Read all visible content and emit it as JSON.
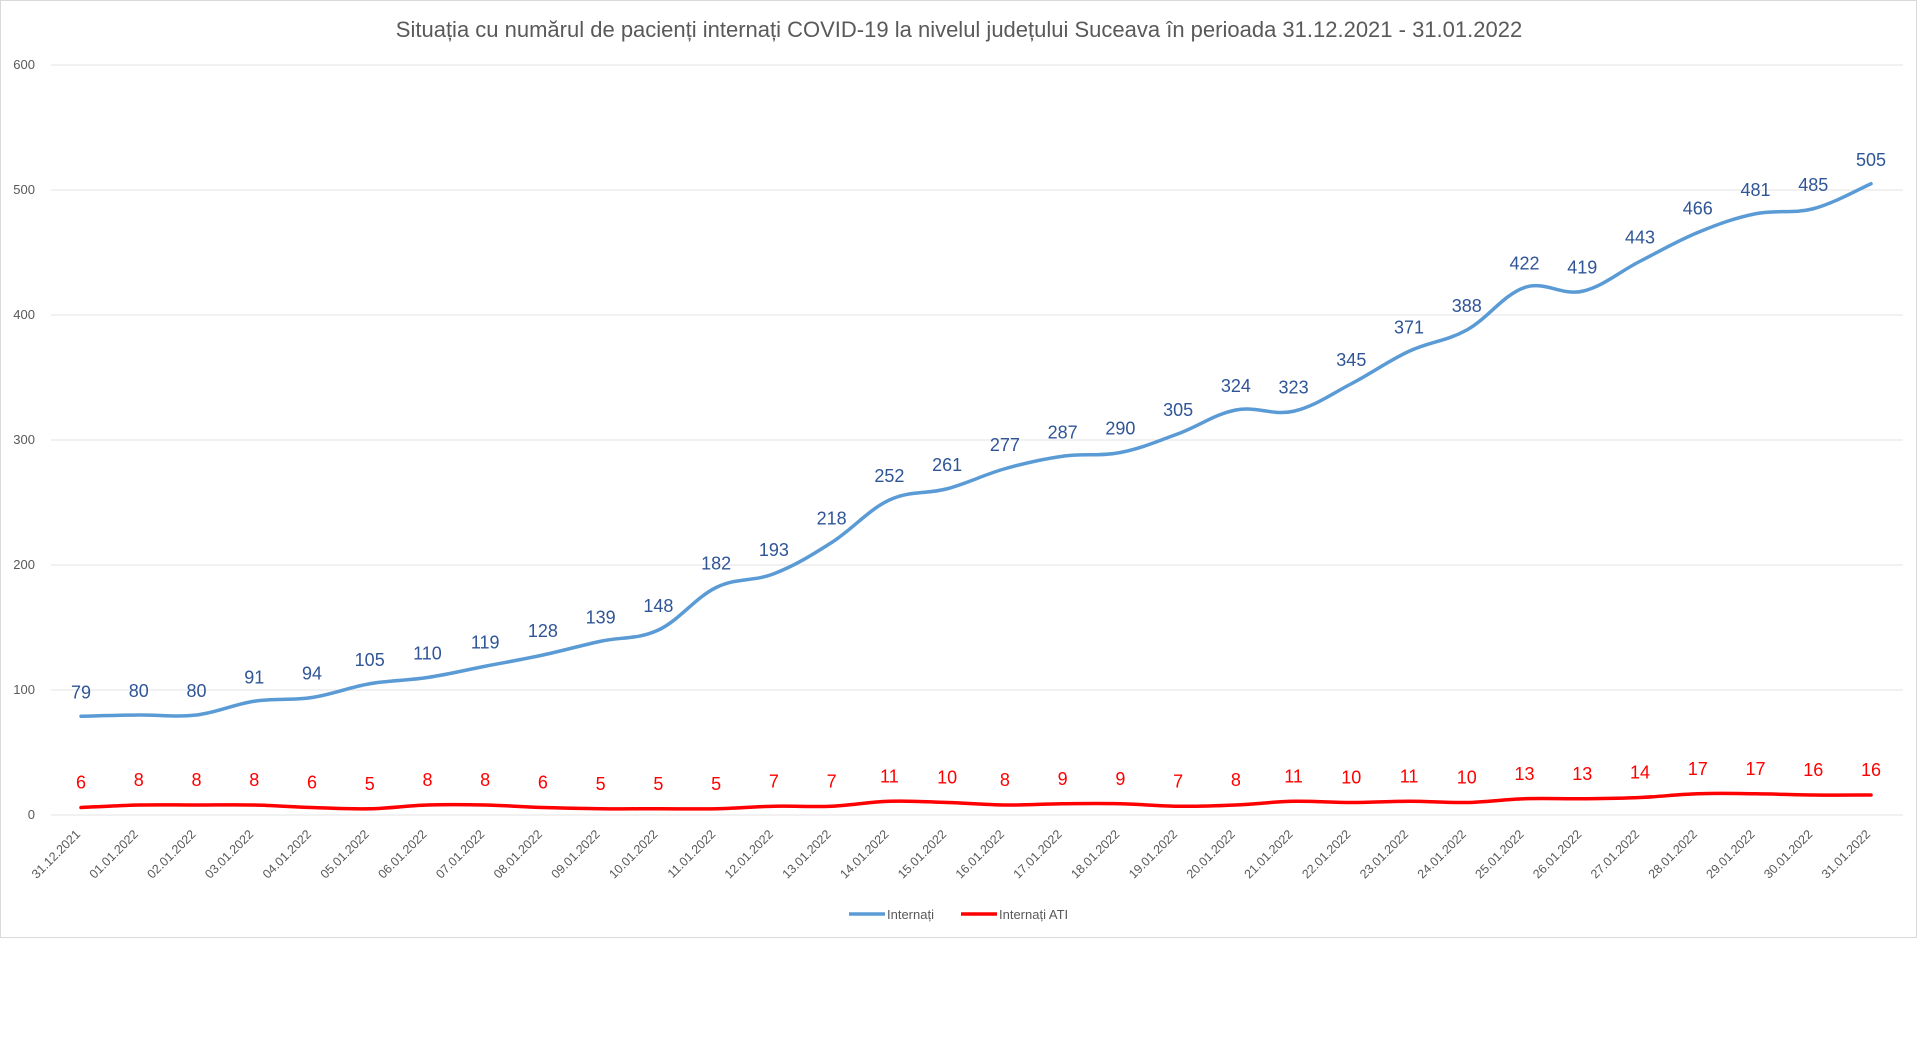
{
  "chart_data": {
    "type": "line",
    "title": "Situația cu numărul de pacienți internați COVID-19 la nivelul județului Suceava în perioada 31.12.2021 - 31.01.2022",
    "xlabel": "",
    "ylabel": "",
    "ylim": [
      0,
      600
    ],
    "yticks": [
      0,
      100,
      200,
      300,
      400,
      500,
      600
    ],
    "grid": true,
    "legend_position": "bottom",
    "categories": [
      "31.12.2021",
      "01.01.2022",
      "02.01.2022",
      "03.01.2022",
      "04.01.2022",
      "05.01.2022",
      "06.01.2022",
      "07.01.2022",
      "08.01.2022",
      "09.01.2022",
      "10.01.2022",
      "11.01.2022",
      "12.01.2022",
      "13.01.2022",
      "14.01.2022",
      "15.01.2022",
      "16.01.2022",
      "17.01.2022",
      "18.01.2022",
      "19.01.2022",
      "20.01.2022",
      "21.01.2022",
      "22.01.2022",
      "23.01.2022",
      "24.01.2022",
      "25.01.2022",
      "26.01.2022",
      "27.01.2022",
      "28.01.2022",
      "29.01.2022",
      "30.01.2022",
      "31.01.2022"
    ],
    "series": [
      {
        "name": "Internați",
        "color": "#5b9bd5",
        "label_color": "#2f5597",
        "values": [
          79,
          80,
          80,
          91,
          94,
          105,
          110,
          119,
          128,
          139,
          148,
          182,
          193,
          218,
          252,
          261,
          277,
          287,
          290,
          305,
          324,
          323,
          345,
          371,
          388,
          422,
          419,
          443,
          466,
          481,
          485,
          505
        ]
      },
      {
        "name": "Internați ATI",
        "color": "#ff0000",
        "label_color": "#ff0000",
        "values": [
          6,
          8,
          8,
          8,
          6,
          5,
          8,
          8,
          6,
          5,
          5,
          5,
          7,
          7,
          11,
          10,
          8,
          9,
          9,
          7,
          8,
          11,
          10,
          11,
          10,
          13,
          13,
          14,
          17,
          17,
          16,
          16
        ]
      }
    ]
  }
}
